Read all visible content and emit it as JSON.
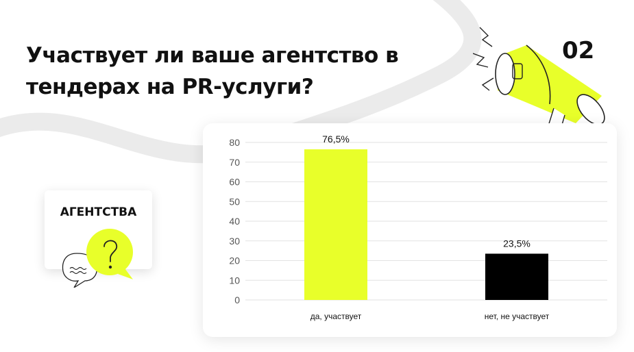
{
  "title": "Участвует ли ваше агентство в тендерах на PR-услуги?",
  "slide_number": "02",
  "segment_label": "АГЕНТСТВА",
  "icons": {
    "megaphone": "megaphone-icon",
    "question": "question-bubble-icon",
    "speech": "speech-bubble-icon"
  },
  "colors": {
    "accent": "#E8FF2A",
    "dark": "#000000",
    "text": "#111111",
    "grid": "#e2e2e2"
  },
  "chart_data": {
    "type": "bar",
    "categories": [
      "да, участвует",
      "нет, не участвует"
    ],
    "values": [
      76.5,
      23.5
    ],
    "data_labels": [
      "76,5%",
      "23,5%"
    ],
    "bar_colors": [
      "#E8FF2A",
      "#000000"
    ],
    "ylim": [
      0,
      80
    ],
    "yticks": [
      0,
      10,
      20,
      30,
      40,
      50,
      60,
      70,
      80
    ],
    "grid": true,
    "legend": "none",
    "title": "",
    "xlabel": "",
    "ylabel": ""
  }
}
